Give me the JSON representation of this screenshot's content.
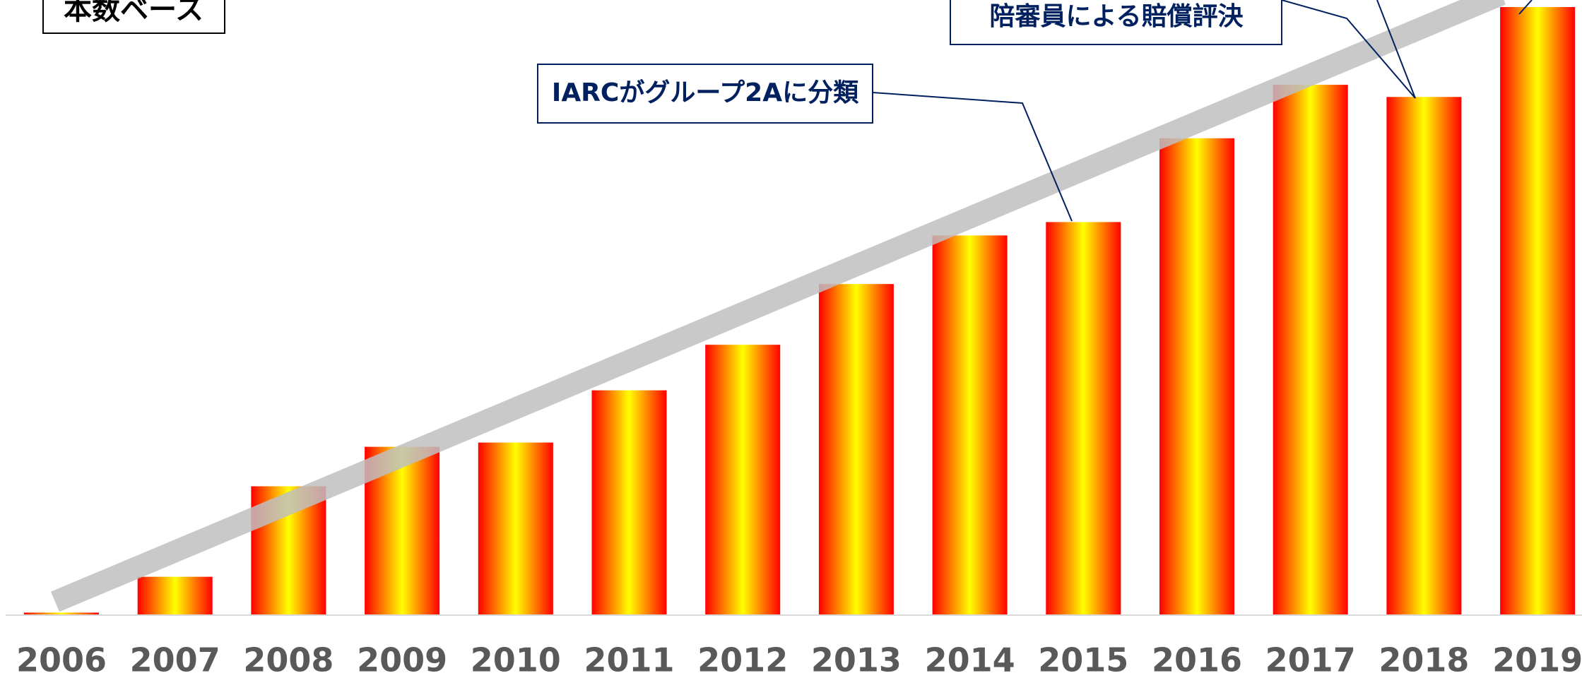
{
  "chart_data": {
    "type": "bar",
    "categories": [
      "2006",
      "2007",
      "2008",
      "2009",
      "2010",
      "2011",
      "2012",
      "2013",
      "2014",
      "2015",
      "2016",
      "2017",
      "2018",
      "2019"
    ],
    "values": [
      0.3,
      6.2,
      21.1,
      27.6,
      28.3,
      36.9,
      44.4,
      54.4,
      62.4,
      64.6,
      78.4,
      87.2,
      85.2,
      100
    ],
    "ylim": [
      0,
      100
    ],
    "basis_label": "本数ベース",
    "annotations": [
      "IARCがグループ2Aに分類",
      "陪審員による賠償評決"
    ]
  }
}
